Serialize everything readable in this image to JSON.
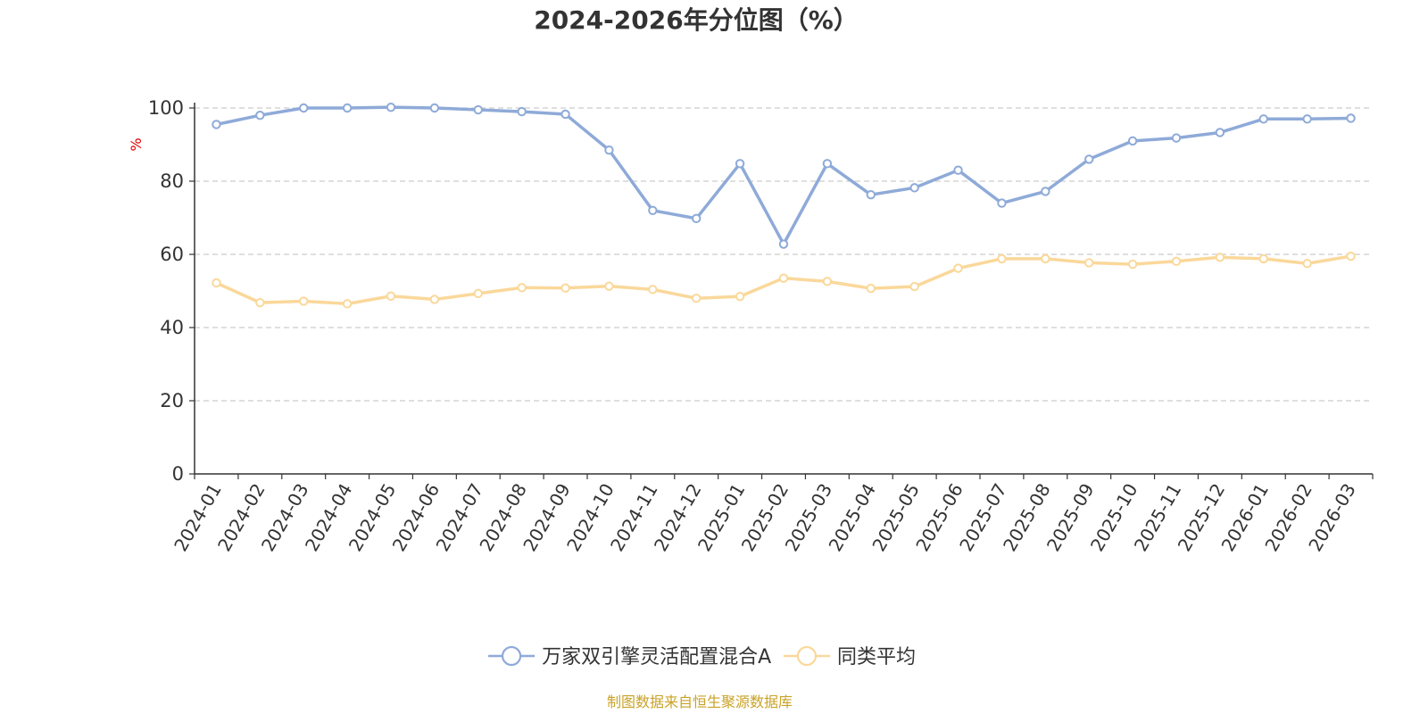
{
  "chart_data": {
    "type": "line",
    "title": "2024-2026年分位图（%）",
    "ylabel": "%",
    "xlabel": "",
    "ylim": [
      0,
      100
    ],
    "yticks": [
      "0",
      "20",
      "40",
      "60",
      "80",
      "100"
    ],
    "grid": true,
    "legend_position": "bottom",
    "categories": [
      "2024-01",
      "2024-02",
      "2024-03",
      "2024-04",
      "2024-05",
      "2024-06",
      "2024-07",
      "2024-08",
      "2024-09",
      "2024-10",
      "2024-11",
      "2024-12",
      "2025-01",
      "2025-02",
      "2025-03",
      "2025-04",
      "2025-05",
      "2025-06",
      "2025-07",
      "2025-08",
      "2025-09",
      "2025-10",
      "2025-11",
      "2025-12",
      "2026-01",
      "2026-02",
      "2026-03"
    ],
    "series": [
      {
        "name": "万家双引擎灵活配置混合A",
        "color": "#8eaad8",
        "values": [
          95.5,
          98,
          100,
          100,
          100.2,
          100,
          99.5,
          99,
          98.3,
          88.5,
          72,
          69.8,
          84.8,
          62.8,
          84.8,
          76.3,
          78.2,
          83,
          74,
          77.2,
          86,
          91,
          91.8,
          93.3,
          97,
          97,
          97.2
        ]
      },
      {
        "name": "同类平均",
        "color": "#fad89a",
        "values": [
          52.2,
          46.8,
          47.2,
          46.5,
          48.6,
          47.7,
          49.3,
          50.9,
          50.8,
          51.3,
          50.4,
          48,
          48.5,
          53.5,
          52.6,
          50.7,
          51.2,
          56.2,
          58.8,
          58.8,
          57.7,
          57.3,
          58.1,
          59.2,
          58.8,
          57.5,
          59.5
        ]
      }
    ]
  },
  "footer": {
    "source": "制图数据来自恒生聚源数据库"
  }
}
